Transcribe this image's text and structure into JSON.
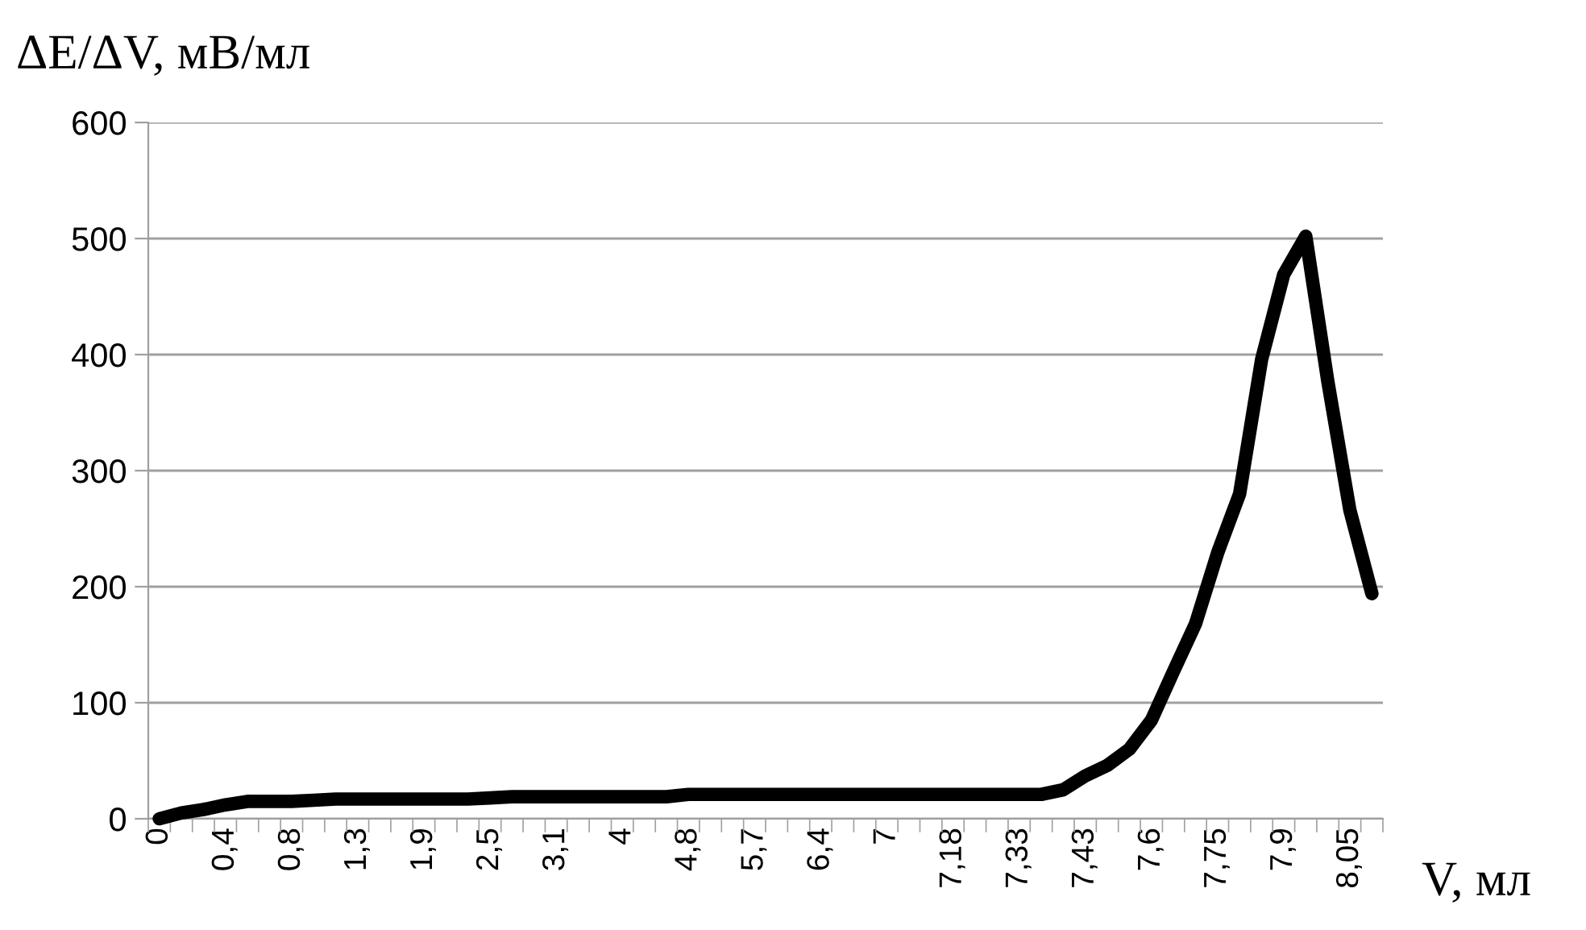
{
  "chart_data": {
    "type": "line",
    "ylabel": "ΔE/ΔV, мВ/мл",
    "xlabel": "V, мл",
    "categories": [
      "0",
      null,
      null,
      "0,4",
      null,
      null,
      "0,8",
      null,
      null,
      "1,3",
      null,
      null,
      "1,9",
      null,
      null,
      "2,5",
      null,
      null,
      "3,1",
      null,
      null,
      "4",
      null,
      null,
      "4,8",
      null,
      null,
      "5,7",
      null,
      null,
      "6,4",
      null,
      null,
      "7",
      null,
      null,
      "7,18",
      null,
      null,
      "7,33",
      null,
      null,
      "7,43",
      null,
      null,
      "7,6",
      null,
      null,
      "7,75",
      null,
      null,
      "7,9",
      null,
      null,
      "8,05",
      null
    ],
    "series": [
      {
        "color": "#000000",
        "values": [
          0,
          5,
          8,
          12,
          15,
          15,
          15,
          16,
          17,
          17,
          17,
          17,
          17,
          17,
          17,
          18,
          19,
          19,
          19,
          19,
          19,
          19,
          19,
          19,
          21,
          21,
          21,
          21,
          21,
          21,
          21,
          21,
          21,
          21,
          21,
          21,
          21,
          21,
          21,
          21,
          21,
          25,
          37,
          46,
          60,
          85,
          127,
          168,
          229,
          280,
          396,
          469,
          502,
          377,
          266,
          194
        ]
      }
    ],
    "ylim": [
      0,
      600
    ],
    "yticks": [
      0,
      100,
      200,
      300,
      400,
      500,
      600
    ],
    "grid": "y",
    "marker": "none",
    "line_style": "solid"
  }
}
